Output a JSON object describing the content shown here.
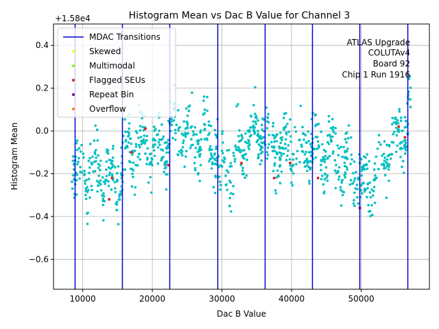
{
  "chart_data": {
    "type": "scatter",
    "title": "Histogram Mean vs Dac B Value for Channel 3",
    "xlabel": "Dac B Value",
    "ylabel": "Histogram Mean",
    "offset_label": "+1.58e4",
    "xlim": [
      5800,
      59800
    ],
    "ylim": [
      -0.74,
      0.5
    ],
    "x_ticks": [
      10000,
      20000,
      30000,
      40000,
      50000
    ],
    "x_tick_labels": [
      "10000",
      "20000",
      "30000",
      "40000",
      "50000"
    ],
    "y_ticks": [
      -0.6,
      -0.4,
      -0.2,
      0.0,
      0.2,
      0.4
    ],
    "y_tick_labels": [
      "−0.6",
      "−0.4",
      "−0.2",
      "0.0",
      "0.2",
      "0.4"
    ],
    "grid": true,
    "legend_position": "upper-left",
    "legend": [
      {
        "label": "MDAC Transitions",
        "kind": "line",
        "color": "#0000cc"
      },
      {
        "label": "Skewed",
        "kind": "dot",
        "color": "#ffff00"
      },
      {
        "label": "Multimodal",
        "kind": "dot",
        "color": "#7fff00"
      },
      {
        "label": "Flagged SEUs",
        "kind": "dot",
        "color": "#d62728"
      },
      {
        "label": "Repeat Bin",
        "kind": "dot",
        "color": "#800080"
      },
      {
        "label": "Overflow",
        "kind": "dot",
        "color": "#ff7f0e"
      }
    ],
    "annotation": [
      "ATLAS Upgrade",
      "COLUTAv4",
      "Board 92",
      "Chip 1  Run 1916"
    ],
    "mdac_transitions": [
      8900,
      15700,
      22500,
      29400,
      36200,
      43000,
      49800,
      56700
    ],
    "segment_trend": [
      {
        "x0": 8400,
        "x1": 8900,
        "y0": -0.3,
        "y1": -0.2
      },
      {
        "x0": 8900,
        "x1": 15700,
        "y0": -0.2,
        "y1": -0.2
      },
      {
        "x0": 15700,
        "x1": 22500,
        "y0": -0.1,
        "y1": -0.05
      },
      {
        "x0": 22500,
        "x1": 29400,
        "y0": 0.0,
        "y1": -0.05
      },
      {
        "x0": 29400,
        "x1": 36200,
        "y0": -0.25,
        "y1": 0.05
      },
      {
        "x0": 36200,
        "x1": 43000,
        "y0": -0.1,
        "y1": -0.05
      },
      {
        "x0": 43000,
        "x1": 49800,
        "y0": -0.05,
        "y1": -0.2
      },
      {
        "x0": 49800,
        "x1": 56700,
        "y0": -0.3,
        "y1": 0.05
      },
      {
        "x0": 56700,
        "x1": 57100,
        "y0": 0.1,
        "y1": 0.2
      }
    ],
    "points_per_segment": 150,
    "spread": 0.13,
    "main_color": "#00bfbf",
    "flagged_seus": [
      [
        14200,
        -0.22
      ],
      [
        13800,
        -0.32
      ],
      [
        17000,
        -0.1
      ],
      [
        19000,
        0.01
      ],
      [
        22300,
        -0.16
      ],
      [
        32800,
        -0.15
      ],
      [
        37500,
        -0.22
      ],
      [
        39800,
        -0.15
      ],
      [
        43800,
        -0.22
      ],
      [
        49800,
        -0.36
      ],
      [
        55400,
        0.02
      ],
      [
        56300,
        -0.03
      ]
    ]
  }
}
